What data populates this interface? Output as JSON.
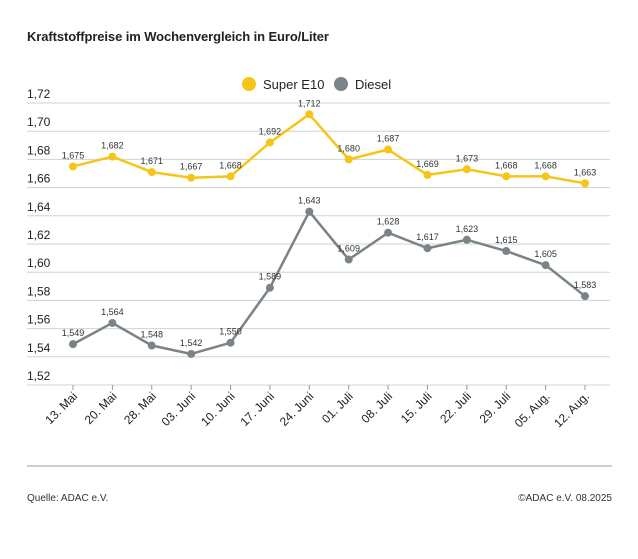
{
  "title": "Kraftstoffpreise im Wochenvergleich in Euro/Liter",
  "footer": {
    "source": "Quelle: ADAC e.V.",
    "copyright": "©ADAC e.V. 08.2025"
  },
  "chart_data": {
    "type": "line",
    "title": "Kraftstoffpreise im Wochenvergleich in Euro/Liter",
    "xlabel": "",
    "ylabel": "",
    "categories": [
      "13. Mai",
      "20. Mai",
      "28. Mai",
      "03. Juni",
      "10. Juni",
      "17. Juni",
      "24. Juni",
      "01. Juli",
      "08. Juli",
      "15. Juli",
      "22. Juli",
      "29. Juli",
      "05. Aug.",
      "12. Aug."
    ],
    "ylim": [
      1.52,
      1.72
    ],
    "yticks": [
      "1,52",
      "1,54",
      "1,56",
      "1,58",
      "1,60",
      "1,62",
      "1,64",
      "1,66",
      "1,68",
      "1,70",
      "1,72"
    ],
    "yticks_values": [
      1.52,
      1.54,
      1.56,
      1.58,
      1.6,
      1.62,
      1.64,
      1.66,
      1.68,
      1.7,
      1.72
    ],
    "grid": true,
    "legend_position": "top",
    "series": [
      {
        "name": "Super E10",
        "color": "#f5c518",
        "values": [
          1.675,
          1.682,
          1.671,
          1.667,
          1.668,
          1.692,
          1.712,
          1.68,
          1.687,
          1.669,
          1.673,
          1.668,
          1.668,
          1.663
        ],
        "labels": [
          "1,675",
          "1,682",
          "1,671",
          "1,667",
          "1,668",
          "1,692",
          "1,712",
          "1,680",
          "1,687",
          "1,669",
          "1,673",
          "1,668",
          "1,668",
          "1,663"
        ]
      },
      {
        "name": "Diesel",
        "color": "#7a8388",
        "values": [
          1.549,
          1.564,
          1.548,
          1.542,
          1.55,
          1.589,
          1.643,
          1.609,
          1.628,
          1.617,
          1.623,
          1.615,
          1.605,
          1.583
        ],
        "labels": [
          "1,549",
          "1,564",
          "1,548",
          "1,542",
          "1,550",
          "1,589",
          "1,643",
          "1,609",
          "1,628",
          "1,617",
          "1,623",
          "1,615",
          "1,605",
          "1,583"
        ]
      }
    ]
  }
}
